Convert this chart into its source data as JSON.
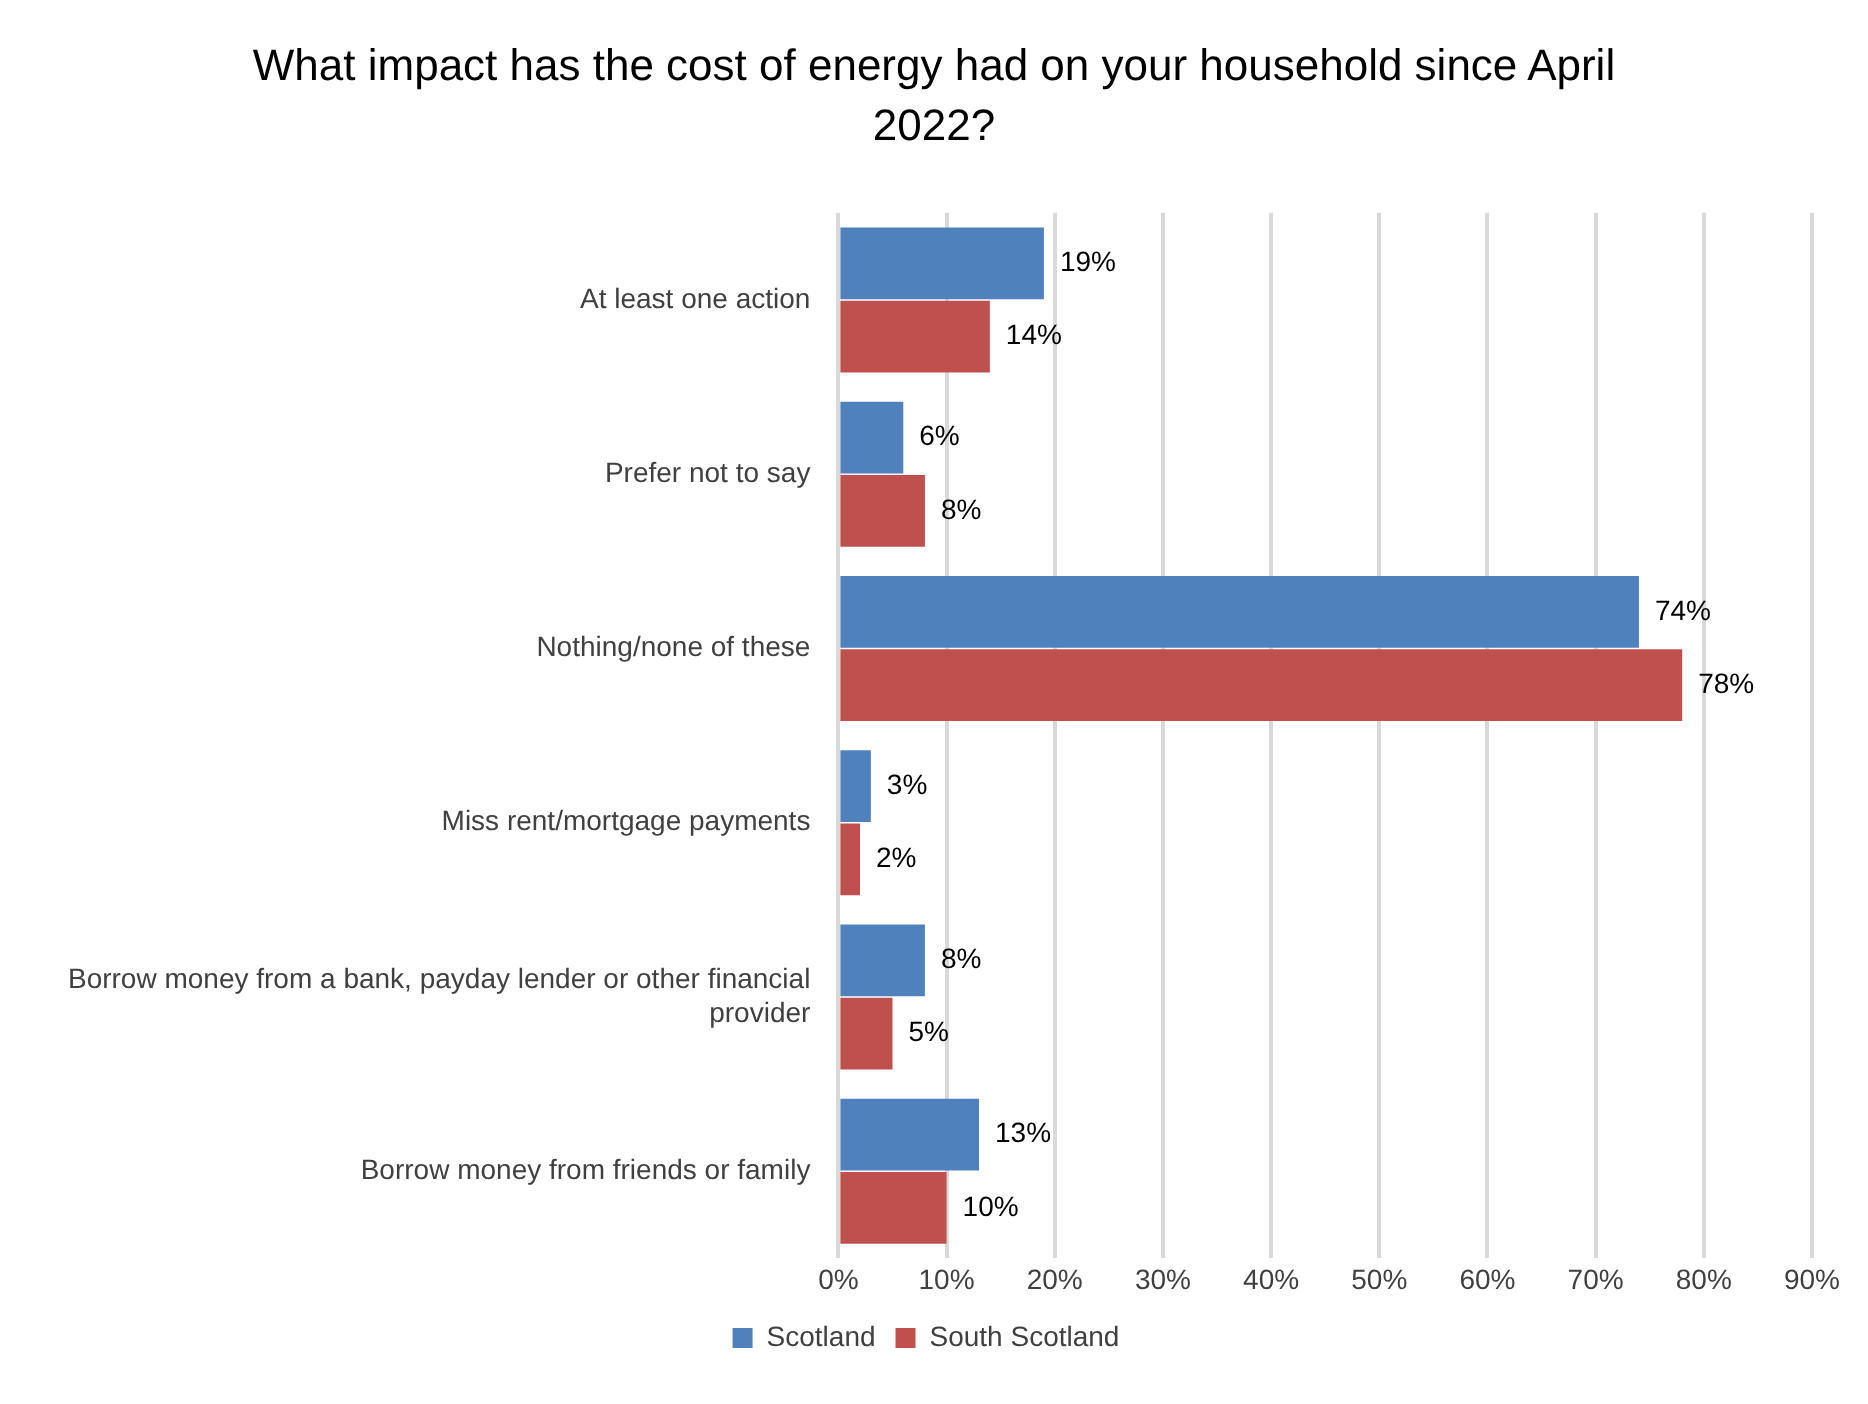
{
  "chart_data": {
    "type": "bar",
    "orientation": "horizontal",
    "title": "What impact has the cost of energy had on your household since April 2022?",
    "categories": [
      "At least one action",
      "Prefer not to say",
      "Nothing/none of these",
      "Miss rent/mortgage payments",
      "Borrow money from a bank, payday lender or other financial provider",
      "Borrow money from friends or family"
    ],
    "series": [
      {
        "name": "Scotland",
        "color": "#4f81bd",
        "values": [
          19,
          6,
          74,
          3,
          8,
          13
        ],
        "value_labels": [
          "19%",
          "6%",
          "74%",
          "3%",
          "8%",
          "13%"
        ]
      },
      {
        "name": "South Scotland",
        "color": "#c0504d",
        "values": [
          14,
          8,
          78,
          2,
          5,
          10
        ],
        "value_labels": [
          "14%",
          "8%",
          "78%",
          "2%",
          "5%",
          "10%"
        ]
      }
    ],
    "xlim": [
      0,
      90
    ],
    "xticks": [
      {
        "value": 0,
        "label": "0%"
      },
      {
        "value": 10,
        "label": "10%"
      },
      {
        "value": 20,
        "label": "20%"
      },
      {
        "value": 30,
        "label": "30%"
      },
      {
        "value": 40,
        "label": "40%"
      },
      {
        "value": 50,
        "label": "50%"
      },
      {
        "value": 60,
        "label": "60%"
      },
      {
        "value": 70,
        "label": "70%"
      },
      {
        "value": 80,
        "label": "80%"
      },
      {
        "value": 90,
        "label": "90%"
      }
    ],
    "grid": "x",
    "legend": "bottom"
  }
}
